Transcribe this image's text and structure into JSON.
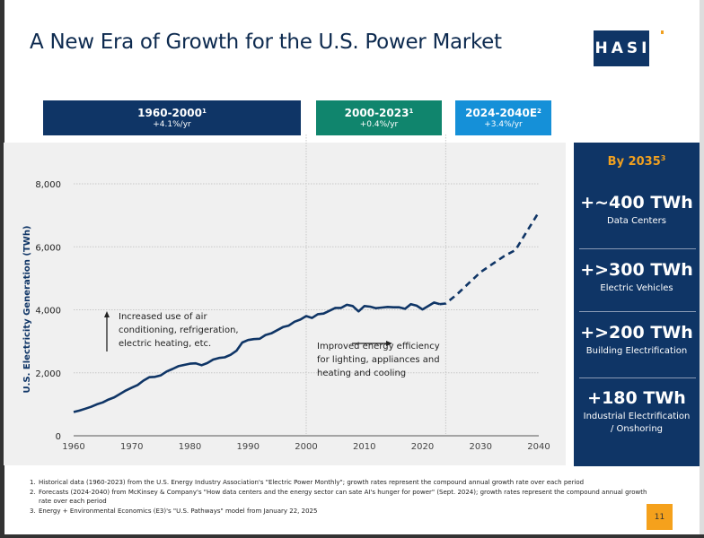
{
  "page": {
    "title": "A New Era of Growth for the U.S. Power Market",
    "logo_text": "HASI",
    "page_number": "11"
  },
  "periods": [
    {
      "range": "1960-2000",
      "sup": "1",
      "rate": "+4.1%/yr",
      "color": "#0f3566"
    },
    {
      "range": "2000-2023",
      "sup": "1",
      "rate": "+0.4%/yr",
      "color": "#10856d"
    },
    {
      "range": "2024-2040E",
      "sup": "2",
      "rate": "+3.4%/yr",
      "color": "#1590d8"
    }
  ],
  "sidebar": {
    "heading": "By 2035",
    "heading_sup": "3",
    "items": [
      {
        "value": "+~400 TWh",
        "label": "Data Centers"
      },
      {
        "value": "+>300 TWh",
        "label": "Electric Vehicles"
      },
      {
        "value": "+>200 TWh",
        "label": "Building Electrification"
      },
      {
        "value": "+180 TWh",
        "label": "Industrial Electrification / Onshoring"
      }
    ]
  },
  "annotations": {
    "left": "Increased use of air conditioning, refrigeration, electric heating, etc.",
    "left_lines": [
      "Increased use of air",
      "conditioning, refrigeration,",
      "electric heating, etc."
    ],
    "right_lines": [
      "Improved energy efficiency",
      "for lighting, appliances and",
      "heating and cooling"
    ]
  },
  "footnotes": [
    {
      "num": "1.",
      "text": "Historical data (1960-2023) from the U.S. Energy Industry Association's \"Electric Power Monthly\"; growth rates represent the compound annual growth rate over each period"
    },
    {
      "num": "2.",
      "text": "Forecasts (2024-2040) from McKinsey & Company's \"How data centers and the energy sector can sate AI's hunger for power\" (Sept. 2024); growth rates represent the compound annual growth rate over each period"
    },
    {
      "num": "3.",
      "text": "Energy + Environmental Economics (E3)'s \"U.S. Pathways\" model from January 22, 2025"
    }
  ],
  "chart_data": {
    "type": "line",
    "title": "",
    "xlabel": "",
    "ylabel": "U.S. Electricity Generation (TWh)",
    "xlim": [
      1960,
      2040
    ],
    "ylim": [
      0,
      8000
    ],
    "x_ticks": [
      1960,
      1970,
      1980,
      1990,
      2000,
      2010,
      2020,
      2030,
      2040
    ],
    "x_tick_labels": [
      "1960",
      "1970",
      "1980",
      "1990",
      "2000",
      "2010",
      "2020",
      "2030",
      "2040"
    ],
    "y_ticks": [
      0,
      2000,
      4000,
      6000,
      8000
    ],
    "y_tick_labels": [
      "0",
      "2,000",
      "4,000",
      "6,000",
      "8,000"
    ],
    "grid": "horizontal dotted",
    "period_dividers": [
      2000,
      2024
    ],
    "series": [
      {
        "name": "Historical",
        "style": "solid",
        "color": "#0f3566",
        "x": [
          1960,
          1961,
          1962,
          1963,
          1964,
          1965,
          1966,
          1967,
          1968,
          1969,
          1970,
          1971,
          1972,
          1973,
          1974,
          1975,
          1976,
          1977,
          1978,
          1979,
          1980,
          1981,
          1982,
          1983,
          1984,
          1985,
          1986,
          1987,
          1988,
          1989,
          1990,
          1991,
          1992,
          1993,
          1994,
          1995,
          1996,
          1997,
          1998,
          1999,
          2000,
          2001,
          2002,
          2003,
          2004,
          2005,
          2006,
          2007,
          2008,
          2009,
          2010,
          2011,
          2012,
          2013,
          2014,
          2015,
          2016,
          2017,
          2018,
          2019,
          2020,
          2021,
          2022,
          2023
        ],
        "y": [
          755,
          800,
          860,
          920,
          1000,
          1060,
          1150,
          1220,
          1330,
          1440,
          1530,
          1610,
          1750,
          1860,
          1870,
          1920,
          2040,
          2120,
          2210,
          2250,
          2290,
          2300,
          2240,
          2310,
          2420,
          2470,
          2490,
          2570,
          2700,
          2960,
          3040,
          3070,
          3080,
          3200,
          3250,
          3350,
          3450,
          3500,
          3620,
          3690,
          3800,
          3740,
          3860,
          3880,
          3970,
          4060,
          4060,
          4160,
          4120,
          3950,
          4120,
          4100,
          4050,
          4070,
          4090,
          4080,
          4080,
          4030,
          4180,
          4130,
          4010,
          4120,
          4230,
          4180
        ]
      },
      {
        "name": "Forecast",
        "style": "dashed",
        "color": "#0f3566",
        "x": [
          2023,
          2024,
          2026,
          2028,
          2030,
          2032,
          2034,
          2036,
          2038,
          2040
        ],
        "y": [
          4180,
          4200,
          4500,
          4850,
          5200,
          5450,
          5700,
          5900,
          6500,
          7100
        ]
      }
    ]
  }
}
